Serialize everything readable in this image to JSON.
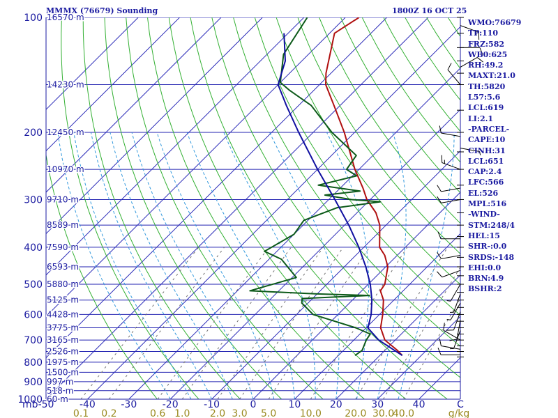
{
  "header": {
    "station_title": "MMMX (76679) Sounding",
    "valid_time": "1800Z 16 OCT 25"
  },
  "colors": {
    "axes": "#1a1aa0",
    "isobars": "#2020b0",
    "isotherms": "#2a2ab8",
    "dry_adiabats": "#33b033",
    "moist_adiabats": "#3399dd",
    "mixing_ratio": "#707070",
    "temperature": "#b01010",
    "dewpoint": "#0d5a1a",
    "parcel": "#1010a0",
    "mixing_ratio_labels": "#9a8a20",
    "wind": "#000000"
  },
  "stats": [
    "WMO:76679",
    "TP:110",
    "FRZ:582",
    "WB0:625",
    "RH:49.2",
    "MAXT:21.0",
    "TH:5820",
    "L57:5.6",
    "LCL:619",
    "LI:2.1",
    "-PARCEL-",
    "CAPE:10",
    "CINH:31",
    "LCL:651",
    "CAP:2.4",
    "LFC:566",
    "EL:526",
    "MPL:516",
    "-WIND-",
    "STM:248/4",
    "HEL:15",
    "SHR-:0.0",
    "SRDS:-148",
    "EHI:0.0",
    "BRN:4.9",
    "BSHR:2"
  ],
  "chart_data": {
    "type": "line",
    "title": "MMMX (76679) Sounding",
    "subtitle": "1800Z 16 OCT 25",
    "x_axis": {
      "unit_label": "C",
      "range": [
        -50,
        50
      ],
      "ticks": [
        "mb",
        "-50",
        "-40",
        "-30",
        "-20",
        "-10",
        "0",
        "10",
        "20",
        "30",
        "40",
        "C"
      ],
      "tick_values": [
        -50,
        -40,
        -30,
        -20,
        -10,
        0,
        10,
        20,
        30,
        40
      ]
    },
    "y_axis": {
      "scale": "log",
      "unit_label": "mb",
      "range": [
        1000,
        100
      ],
      "pressure_labels": [
        {
          "p": 100,
          "label": "100"
        },
        {
          "p": 200,
          "label": "200"
        },
        {
          "p": 300,
          "label": "300"
        },
        {
          "p": 400,
          "label": "400"
        },
        {
          "p": 500,
          "label": "500"
        },
        {
          "p": 600,
          "label": "600"
        },
        {
          "p": 700,
          "label": "700"
        },
        {
          "p": 800,
          "label": "800"
        },
        {
          "p": 900,
          "label": "900"
        },
        {
          "p": 1000,
          "label": "1000"
        }
      ],
      "height_labels": [
        {
          "p": 100,
          "label": "16570 m"
        },
        {
          "p": 150,
          "label": "14230 m"
        },
        {
          "p": 200,
          "label": "12450 m"
        },
        {
          "p": 250,
          "label": "10970 m"
        },
        {
          "p": 300,
          "label": "9710 m"
        },
        {
          "p": 350,
          "label": "8589 m"
        },
        {
          "p": 400,
          "label": "7590 m"
        },
        {
          "p": 450,
          "label": "6593 m"
        },
        {
          "p": 500,
          "label": "5880 m"
        },
        {
          "p": 550,
          "label": "5125 m"
        },
        {
          "p": 600,
          "label": "4428 m"
        },
        {
          "p": 650,
          "label": "3775 m"
        },
        {
          "p": 700,
          "label": "3165 m"
        },
        {
          "p": 750,
          "label": "2526 m"
        },
        {
          "p": 800,
          "label": "1975 m"
        },
        {
          "p": 850,
          "label": "1500 m"
        },
        {
          "p": 900,
          "label": "997 m"
        },
        {
          "p": 950,
          "label": "518 m"
        },
        {
          "p": 1000,
          "label": "60 m"
        }
      ]
    },
    "mixing_ratio_axis": {
      "unit_label": "g/kg",
      "values": [
        {
          "w": 0.1,
          "label": "0.1"
        },
        {
          "w": 0.2,
          "label": "0.2"
        },
        {
          "w": 0.6,
          "label": "0.6"
        },
        {
          "w": 1.0,
          "label": "1.0"
        },
        {
          "w": 2.0,
          "label": "2.0"
        },
        {
          "w": 3.0,
          "label": "3.0"
        },
        {
          "w": 5.0,
          "label": "5.0"
        },
        {
          "w": 10.0,
          "label": "10.0"
        },
        {
          "w": 20.0,
          "label": "20.0"
        },
        {
          "w": 30.0,
          "label": "30.0"
        },
        {
          "w": 40.0,
          "label": "40.0"
        }
      ]
    },
    "series": [
      {
        "key": "temperature",
        "points": [
          {
            "p": 768,
            "t": 25.4
          },
          {
            "p": 745,
            "t": 23.0
          },
          {
            "p": 700,
            "t": 17.5
          },
          {
            "p": 650,
            "t": 13.5
          },
          {
            "p": 600,
            "t": 10.8
          },
          {
            "p": 550,
            "t": 7.5
          },
          {
            "p": 520,
            "t": 4.5
          },
          {
            "p": 500,
            "t": 4.0
          },
          {
            "p": 450,
            "t": 0.5
          },
          {
            "p": 420,
            "t": -3.0
          },
          {
            "p": 400,
            "t": -6.2
          },
          {
            "p": 350,
            "t": -11.5
          },
          {
            "p": 325,
            "t": -15.4
          },
          {
            "p": 300,
            "t": -20.8
          },
          {
            "p": 280,
            "t": -24.5
          },
          {
            "p": 250,
            "t": -31.0
          },
          {
            "p": 200,
            "t": -42.5
          },
          {
            "p": 170,
            "t": -51.5
          },
          {
            "p": 150,
            "t": -58.5
          },
          {
            "p": 140,
            "t": -61.2
          },
          {
            "p": 110,
            "t": -68.8
          },
          {
            "p": 100,
            "t": -66.7
          }
        ]
      },
      {
        "key": "dewpoint",
        "points": [
          {
            "p": 768,
            "t": 14.0
          },
          {
            "p": 745,
            "t": 14.5
          },
          {
            "p": 700,
            "t": 13.0
          },
          {
            "p": 675,
            "t": 12.5
          },
          {
            "p": 650,
            "t": 7.5
          },
          {
            "p": 600,
            "t": -6.0
          },
          {
            "p": 560,
            "t": -11.5
          },
          {
            "p": 545,
            "t": -12.5
          },
          {
            "p": 535,
            "t": 3.0
          },
          {
            "p": 530,
            "t": -10.0
          },
          {
            "p": 520,
            "t": -27.0
          },
          {
            "p": 480,
            "t": -19.0
          },
          {
            "p": 430,
            "t": -27.0
          },
          {
            "p": 410,
            "t": -33.0
          },
          {
            "p": 370,
            "t": -30.0
          },
          {
            "p": 340,
            "t": -31.0
          },
          {
            "p": 315,
            "t": -26.0
          },
          {
            "p": 304,
            "t": -17.0
          },
          {
            "p": 300,
            "t": -24.5
          },
          {
            "p": 292,
            "t": -32.0
          },
          {
            "p": 285,
            "t": -24.5
          },
          {
            "p": 275,
            "t": -36.0
          },
          {
            "p": 260,
            "t": -29.0
          },
          {
            "p": 250,
            "t": -33.0
          },
          {
            "p": 230,
            "t": -34.0
          },
          {
            "p": 200,
            "t": -45.5
          },
          {
            "p": 170,
            "t": -57.0
          },
          {
            "p": 155,
            "t": -66.0
          },
          {
            "p": 148,
            "t": -70.0
          },
          {
            "p": 125,
            "t": -76.0
          },
          {
            "p": 100,
            "t": -79.2
          }
        ]
      },
      {
        "key": "parcel",
        "points": [
          {
            "p": 768,
            "t": 25.4
          },
          {
            "p": 700,
            "t": 16.0
          },
          {
            "p": 651,
            "t": 10.5
          },
          {
            "p": 600,
            "t": 8.0
          },
          {
            "p": 550,
            "t": 4.7
          },
          {
            "p": 500,
            "t": 0.5
          },
          {
            "p": 450,
            "t": -4.8
          },
          {
            "p": 400,
            "t": -11.2
          },
          {
            "p": 350,
            "t": -19.0
          },
          {
            "p": 300,
            "t": -28.5
          },
          {
            "p": 250,
            "t": -40.0
          },
          {
            "p": 200,
            "t": -53.5
          },
          {
            "p": 170,
            "t": -63.0
          },
          {
            "p": 150,
            "t": -70.0
          },
          {
            "p": 130,
            "t": -74.0
          },
          {
            "p": 110,
            "t": -81.0
          }
        ]
      }
    ],
    "wind_barbs": [
      {
        "p": 765,
        "dir": 270,
        "spd": 10
      },
      {
        "p": 740,
        "dir": 280,
        "spd": 10
      },
      {
        "p": 700,
        "dir": 300,
        "spd": 10
      },
      {
        "p": 660,
        "dir": 200,
        "spd": 5
      },
      {
        "p": 620,
        "dir": 190,
        "spd": 10
      },
      {
        "p": 590,
        "dir": 200,
        "spd": 10
      },
      {
        "p": 560,
        "dir": 210,
        "spd": 5
      },
      {
        "p": 530,
        "dir": 200,
        "spd": 5
      },
      {
        "p": 500,
        "dir": 210,
        "spd": 5
      },
      {
        "p": 460,
        "dir": 250,
        "spd": 10
      },
      {
        "p": 420,
        "dir": 260,
        "spd": 10
      },
      {
        "p": 380,
        "dir": 270,
        "spd": 10
      },
      {
        "p": 300,
        "dir": 260,
        "spd": 10
      },
      {
        "p": 280,
        "dir": 260,
        "spd": 10
      },
      {
        "p": 250,
        "dir": 290,
        "spd": 15
      },
      {
        "p": 220,
        "dir": 100,
        "spd": 5
      },
      {
        "p": 205,
        "dir": 280,
        "spd": 10
      },
      {
        "p": 150,
        "dir": 320,
        "spd": 10
      },
      {
        "p": 135,
        "dir": 60,
        "spd": 10
      },
      {
        "p": 120,
        "dir": 90,
        "spd": 10
      },
      {
        "p": 105,
        "dir": 110,
        "spd": 15
      }
    ],
    "wind_ticks": {
      "pressures": [
        100,
        110,
        120,
        130,
        140,
        150,
        175,
        200,
        225,
        250,
        275,
        300,
        325,
        350,
        375,
        400,
        425,
        450,
        475,
        500,
        525,
        550,
        575,
        600,
        625,
        650,
        675,
        700,
        725,
        750,
        775
      ]
    },
    "skew_t": {
      "isotherms_c": [
        -120,
        -110,
        -100,
        -90,
        -80,
        -70,
        -60,
        -50,
        -40,
        -30,
        -20,
        -10,
        0,
        10,
        20,
        30,
        40,
        50
      ],
      "dry_adiabats_k": [
        250,
        260,
        270,
        280,
        290,
        300,
        310,
        320,
        330,
        340,
        350,
        360,
        370,
        380,
        390,
        400,
        410,
        420,
        430,
        440,
        450
      ],
      "moist_adiabats_c": [
        -20,
        -15,
        -10,
        -5,
        0,
        5,
        10,
        15,
        20,
        25,
        30,
        35
      ],
      "mixing_ratio_gkg": [
        0.1,
        0.2,
        0.6,
        1.0,
        2.0,
        3.0,
        5.0,
        10.0,
        20.0,
        30.0,
        40.0
      ],
      "isobars_mb": [
        100,
        150,
        200,
        250,
        300,
        350,
        400,
        450,
        500,
        550,
        600,
        650,
        700,
        750,
        800,
        850,
        900,
        950,
        1000
      ]
    }
  }
}
